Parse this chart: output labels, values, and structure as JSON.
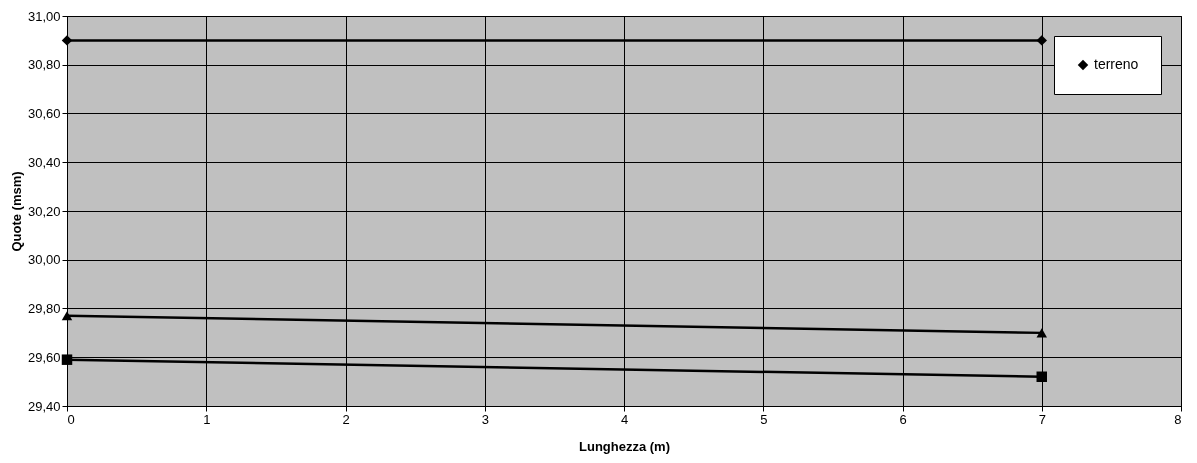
{
  "chart_data": {
    "type": "line",
    "xlabel": "Lunghezza (m)",
    "ylabel": "Quote (msm)",
    "x": [
      0,
      7
    ],
    "series": [
      {
        "name": "terreno",
        "color": "#000000",
        "values": [
          30.9,
          30.9
        ],
        "marker": "diamond"
      },
      {
        "color": "#000000",
        "values": [
          29.77,
          29.7
        ],
        "marker": "triangle"
      },
      {
        "color": "#000000",
        "values": [
          29.59,
          29.52
        ],
        "marker": "square"
      }
    ],
    "xlim": [
      0,
      8
    ],
    "xticks": [
      0,
      1,
      2,
      3,
      4,
      5,
      6,
      7,
      8
    ],
    "ylim": [
      29.4,
      31.0
    ],
    "yticks": [
      {
        "value": 29.4,
        "label": "29,40"
      },
      {
        "value": 29.6,
        "label": "29,60"
      },
      {
        "value": 29.8,
        "label": "29,80"
      },
      {
        "value": 30.0,
        "label": "30,00"
      },
      {
        "value": 30.2,
        "label": "30,20"
      },
      {
        "value": 30.4,
        "label": "30,40"
      },
      {
        "value": 30.6,
        "label": "30,60"
      },
      {
        "value": 30.8,
        "label": "30,80"
      },
      {
        "value": 31.0,
        "label": "31,00"
      }
    ],
    "grid": true,
    "legend": "top right",
    "line_style": "solid"
  }
}
